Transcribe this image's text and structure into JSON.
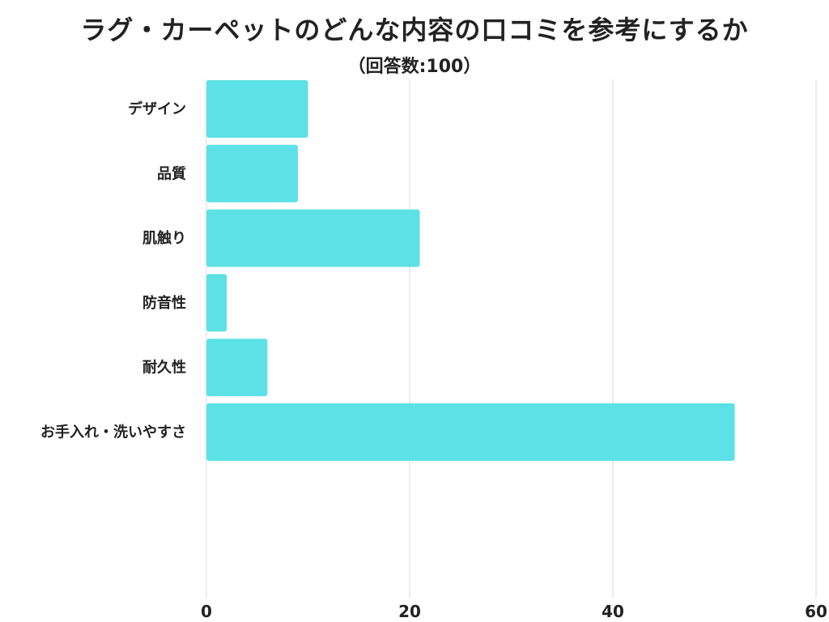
{
  "chart_data": {
    "type": "bar",
    "orientation": "horizontal",
    "title": "ラグ・カーペットのどんな内容の口コミを参考にするか",
    "subtitle": "（回答数:100）",
    "categories": [
      "デザイン",
      "品質",
      "肌触り",
      "防音性",
      "耐久性",
      "お手入れ・洗いやすさ"
    ],
    "values": [
      10,
      9,
      21,
      2,
      6,
      52
    ],
    "xlabel": "",
    "ylabel": "",
    "xlim": [
      0,
      60
    ],
    "xticks": [
      0,
      20,
      40,
      60
    ],
    "grid": true,
    "legend": "none",
    "bar_color": "#5ce1e6"
  }
}
